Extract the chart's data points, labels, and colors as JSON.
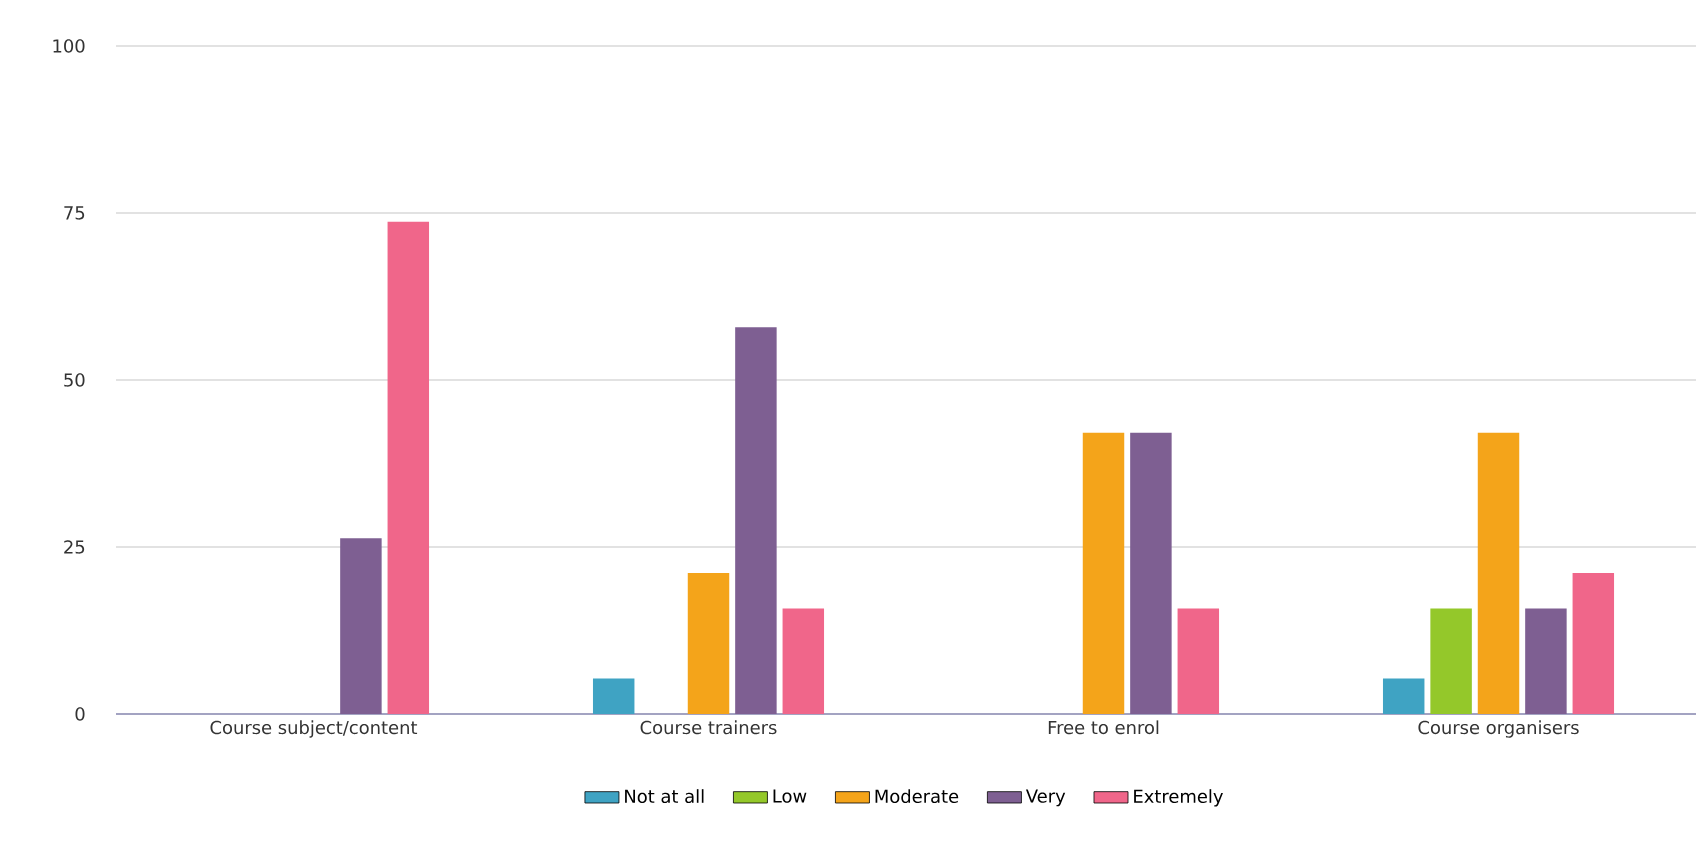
{
  "chart_data": {
    "type": "bar",
    "categories": [
      "Course subject/content",
      "Course trainers",
      "Free to enrol",
      "Course organisers"
    ],
    "series": [
      {
        "name": "Not at all",
        "color": "#3fa3c3",
        "values": [
          null,
          5.3,
          null,
          5.3
        ]
      },
      {
        "name": "Low",
        "color": "#94c82a",
        "values": [
          null,
          null,
          null,
          15.8
        ]
      },
      {
        "name": "Moderate",
        "color": "#f4a41a",
        "values": [
          null,
          21.1,
          42.1,
          42.1
        ]
      },
      {
        "name": "Very",
        "color": "#7e5f92",
        "values": [
          26.3,
          57.9,
          42.1,
          15.8
        ]
      },
      {
        "name": "Extremely",
        "color": "#f0668a",
        "values": [
          73.7,
          15.8,
          15.8,
          21.1
        ]
      }
    ],
    "ylim": [
      0,
      100
    ],
    "yticks": [
      0,
      25,
      50,
      75,
      100
    ],
    "grid": "y",
    "legend": "bottom"
  }
}
